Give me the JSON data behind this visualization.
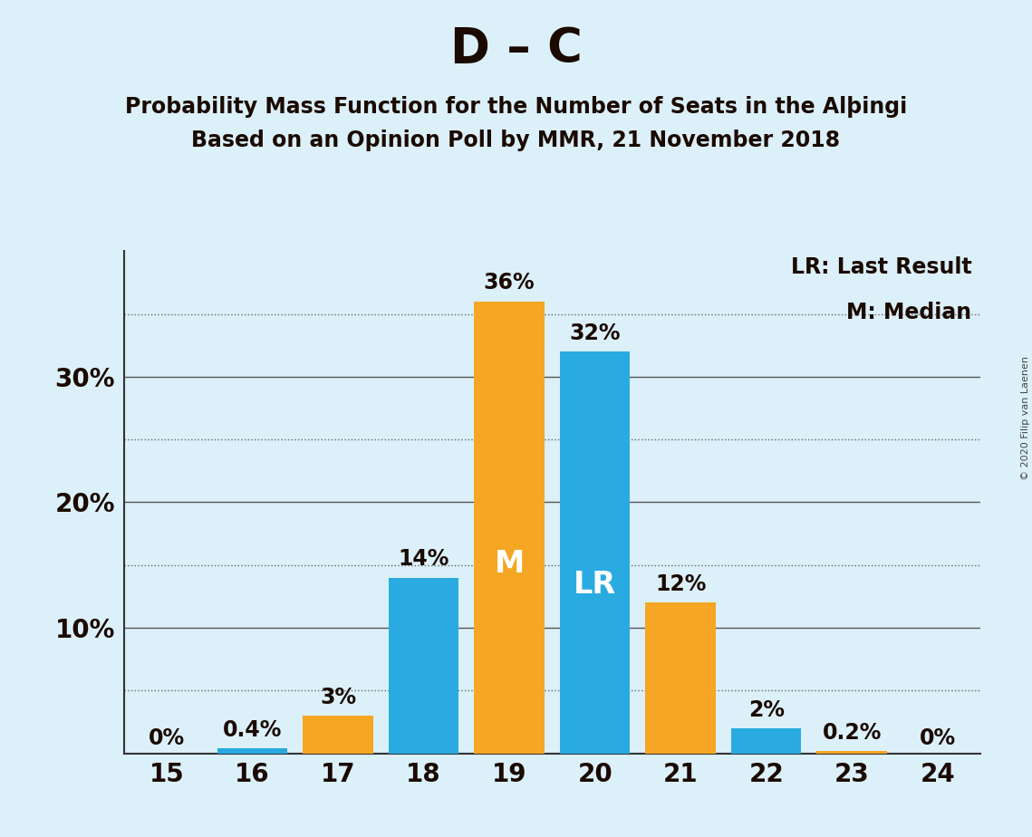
{
  "title": "D – C",
  "subtitle1": "Probability Mass Function for the Number of Seats in the Alþingi",
  "subtitle2": "Based on an Opinion Poll by MMR, 21 November 2018",
  "copyright": "© 2020 Filip van Laenen",
  "seats": [
    15,
    16,
    17,
    18,
    19,
    20,
    21,
    22,
    23,
    24
  ],
  "values": [
    0.0,
    0.4,
    3.0,
    14.0,
    36.0,
    32.0,
    12.0,
    2.0,
    0.2,
    0.0
  ],
  "colors": [
    "#29ABE2",
    "#29ABE2",
    "#F5A623",
    "#29ABE2",
    "#F5A623",
    "#29ABE2",
    "#F5A623",
    "#29ABE2",
    "#F5A623",
    "#29ABE2"
  ],
  "bar_labels": [
    "0%",
    "0.4%",
    "3%",
    "14%",
    "36%",
    "32%",
    "12%",
    "2%",
    "0.2%",
    "0%"
  ],
  "median_seat": 19,
  "lr_seat": 20,
  "median_label": "M",
  "lr_label": "LR",
  "legend_lr": "LR: Last Result",
  "legend_m": "M: Median",
  "background_color": "#DCF0FA",
  "ylim": [
    0,
    40
  ],
  "yticks_major": [
    0,
    10,
    20,
    30
  ],
  "yticks_minor": [
    5,
    15,
    25,
    35
  ],
  "ytick_labels_major": [
    "",
    "10%",
    "20%",
    "30%"
  ],
  "title_fontsize": 38,
  "subtitle_fontsize": 17,
  "axis_tick_fontsize": 20,
  "bar_label_fontsize": 17,
  "inside_label_fontsize": 24,
  "legend_fontsize": 17,
  "copyright_fontsize": 8,
  "text_color": "#1a0a00"
}
